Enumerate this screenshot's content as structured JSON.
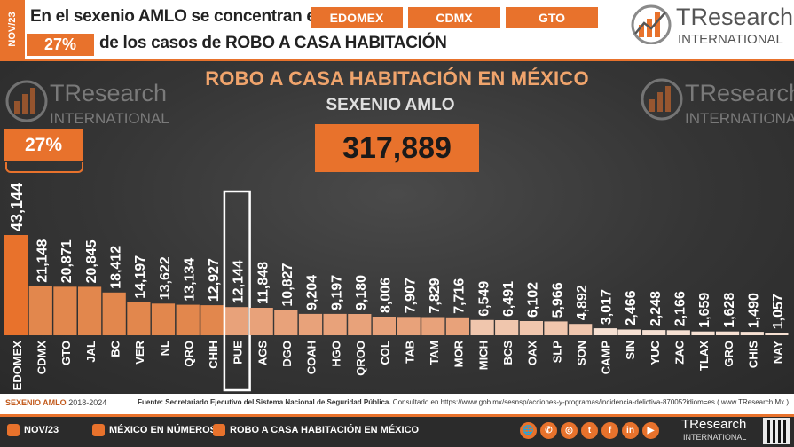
{
  "header": {
    "date_tab": "NOV/23",
    "line1": "En el sexenio AMLO se concentran en",
    "states": [
      "EDOMEX",
      "CDMX",
      "GTO"
    ],
    "pct": "27%",
    "line2": "de los casos de ROBO A CASA HABITACIÓN",
    "logo_tr": "TResearch",
    "logo_intl": "INTERNATIONAL"
  },
  "chart": {
    "total": "317,889",
    "pct_label": "27%",
    "watermark_tr": "TResearch",
    "watermark_intl": "INTERNATIONAL"
  },
  "chart_data": {
    "type": "bar",
    "title": "ROBO A CASA HABITACIÓN EN MÉXICO",
    "subtitle": "SEXENIO AMLO",
    "categories": [
      "EDOMEX",
      "CDMX",
      "GTO",
      "JAL",
      "BC",
      "VER",
      "NL",
      "QRO",
      "CHIH",
      "PUE",
      "AGS",
      "DGO",
      "COAH",
      "HGO",
      "QROO",
      "COL",
      "TAB",
      "TAM",
      "MOR",
      "MICH",
      "BCS",
      "OAX",
      "SLP",
      "SON",
      "CAMP",
      "SIN",
      "YUC",
      "ZAC",
      "TLAX",
      "GRO",
      "CHIS",
      "NAY"
    ],
    "values": [
      43144,
      21148,
      20871,
      20845,
      18412,
      14197,
      13622,
      13134,
      12927,
      12144,
      11848,
      10827,
      9204,
      9197,
      9180,
      8006,
      7907,
      7829,
      7716,
      6549,
      6491,
      6102,
      5966,
      4892,
      3017,
      2466,
      2248,
      2166,
      1659,
      1628,
      1490,
      1057
    ],
    "value_labels": [
      "43,144",
      "21,148",
      "20,871",
      "20,845",
      "18,412",
      "14,197",
      "13,622",
      "13,134",
      "12,927",
      "12,144",
      "11,848",
      "10,827",
      "9,204",
      "9,197",
      "9,180",
      "8,006",
      "7,907",
      "7,829",
      "7,716",
      "6,549",
      "6,491",
      "6,102",
      "5,966",
      "4,892",
      "3,017",
      "2,466",
      "2,248",
      "2,166",
      "1,659",
      "1,628",
      "1,490",
      "1,057"
    ],
    "highlighted": "PUE",
    "colors": {
      "top": "#e8722c",
      "upper": "#e2874d",
      "middle": "#e8a27a",
      "lower": "#f0c6ad",
      "tail": "#f6e0d2"
    },
    "grid": false,
    "legend": "none"
  },
  "source": {
    "left_label": "SEXENIO AMLO",
    "left_years": "2018-2024",
    "right_bold": "Fuente: Secretariado Ejecutivo del Sistema Nacional de Seguridad Pública.",
    "right_text": "Consultado en https://www.gob.mx/sesnsp/acciones-y-programas/incidencia-delictiva-87005?idiom=es ( www.TResearch.Mx )"
  },
  "footer": {
    "date": "NOV/23",
    "section": "MÉXICO EN NÚMEROS",
    "topic": "ROBO A CASA HABITACIÓN EN MÉXICO",
    "socials": [
      "🌐",
      "✆",
      "◎",
      "t",
      "f",
      "in",
      "▶"
    ],
    "logo_tr": "TResearch",
    "logo_intl": "INTERNATIONAL"
  }
}
